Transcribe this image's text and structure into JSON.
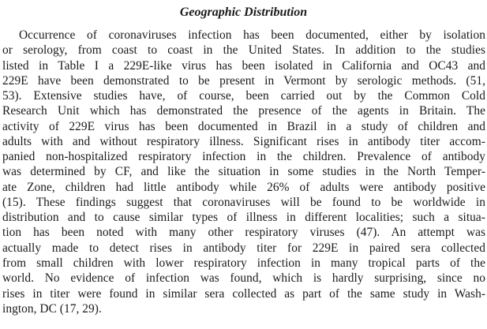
{
  "section": {
    "heading": "Geographic Distribution",
    "lines": [
      "Occurrence of coronaviruses infection has been documented, either by isolation",
      "or serology, from coast to coast in the United States. In addition to the studies",
      "listed in Table I a 229E-like virus has been isolated in California and OC43 and",
      "229E have been demonstrated to be present in Vermont by serologic methods. (51,",
      "53). Extensive studies have, of course, been carried out by the Common Cold",
      "Research Unit which has demonstrated the presence of the agents in Britain. The",
      "activity of 229E virus has been documented in Brazil in a study of children and",
      "adults with and without respiratory illness. Significant rises in antibody titer accom-",
      "panied non-hospitalized respiratory infection in the children. Prevalence of antibody",
      "was determined by CF, and like the situation in some studies in the North Temper-",
      "ate Zone, children had little antibody while 26% of adults were antibody positive",
      "(15). These findings suggest that coronaviruses will be found to be worldwide in",
      "distribution and to cause similar types of illness in different localities; such a situa-",
      "tion has been noted with many other respiratory viruses (47). An attempt was",
      "actually made to detect rises in antibody titer for 229E in paired sera collected",
      "from small children with lower respiratory infection in many tropical parts of the",
      "world. No evidence of infection was found, which is hardly surprising, since no",
      "rises in titer were found in similar sera collected as part of the same study in Wash-",
      "ington, DC (17, 29)."
    ]
  }
}
